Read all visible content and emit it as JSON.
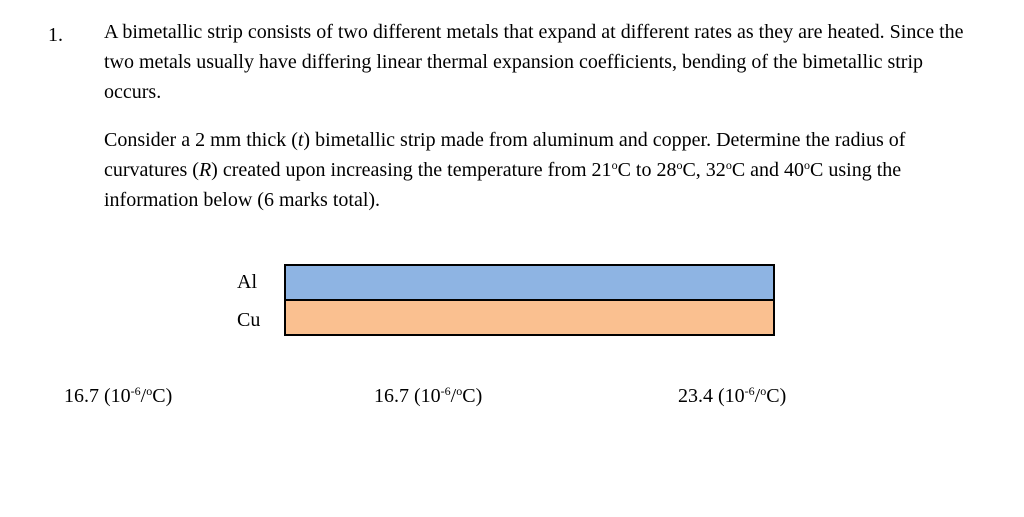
{
  "question": {
    "number": "1.",
    "para1": "A bimetallic strip consists of two different metals that expand at different rates as they are heated. Since the two metals usually have differing linear thermal expansion coefficients, bending of the bimetallic strip occurs.",
    "para2": {
      "t1": "Consider a 2 mm thick (",
      "var_t": "t",
      "t2": ") bimetallic strip made from aluminum and copper. Determine the radius of curvatures (",
      "var_R": "R",
      "t3": ") created upon increasing the temperature from 21",
      "deg1": "o",
      "t4": "C to 28",
      "deg2": "o",
      "t5": "C, 32",
      "deg3": "o",
      "t6": "C and 40",
      "deg4": "o",
      "t7": "C using the information below (6 marks total)."
    }
  },
  "strip": {
    "label_top": "Al",
    "label_bottom": "Cu",
    "colors": {
      "aluminum": "#8EB4E3",
      "copper": "#FAC090",
      "border": "#000000"
    }
  },
  "coefficients": [
    {
      "value": "16.7 (10",
      "exp": "-6",
      "mid": "/",
      "deg": "o",
      "end": "C)"
    },
    {
      "value": "16.7 (10",
      "exp": "-6",
      "mid": "/",
      "deg": "o",
      "end": "C)"
    },
    {
      "value": "23.4 (10",
      "exp": "-6",
      "mid": "/",
      "deg": "o",
      "end": "C)"
    }
  ]
}
